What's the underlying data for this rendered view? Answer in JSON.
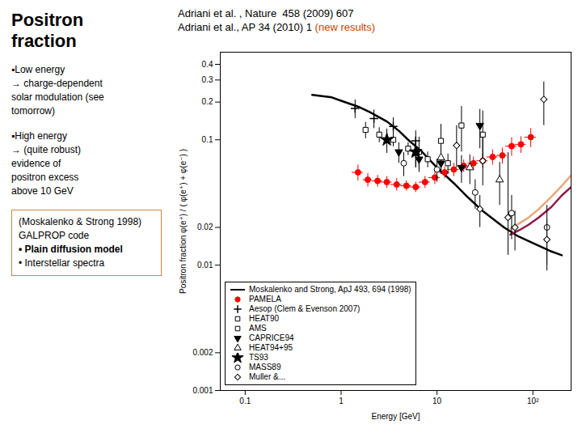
{
  "chart_data": {
    "type": "scatter",
    "title": "Positron\nfraction",
    "x_label": "Energy [GeV]",
    "y_label": "Positron fraction φ(e⁺) / ( φ(e⁺) + φ(e⁻) )",
    "log": true,
    "grid": false,
    "legend": "lower left",
    "xlim": [
      0.055,
      250
    ],
    "ylim": [
      0.001,
      0.5
    ],
    "xticks": [
      0.1,
      1,
      10,
      {
        "value": 100,
        "label": "10²"
      }
    ],
    "yticks": [
      0.001,
      0.002,
      0.01,
      0.02,
      0.1,
      0.2,
      0.3,
      0.4
    ],
    "annotations": [
      [
        [
          {
            "text": "▪Low energy\n→ charge-dependent\nsolar modulation (see\ntomorrow)"
          }
        ]
      ],
      [
        [
          {
            "text": "▪High energy\n→ (quite robust)\nevidence of\npositron excess\nabove 10 GeV"
          }
        ]
      ],
      [
        [
          {
            "text": "Adriani et al. , Nature  458 (2009) 607"
          }
        ],
        [
          {
            "text": "Adriani et al., AP 34 (2010) 1"
          },
          {
            "text": " (new results)",
            "color": "#cc4400"
          }
        ]
      ],
      [
        [
          {
            "text": "(Moskalenko & Strong 1998)\nGALPROP code"
          }
        ],
        [
          {
            "text": "• Plain diffusion model"
          }
        ],
        [
          {
            "text": "• Interstellar spectra"
          }
        ]
      ]
    ],
    "series": [
      {
        "name": "Moskalenko and Strong, ApJ 493, 694 (1998)",
        "type": "line",
        "line_style": "solid",
        "color": "#000000",
        "x": [
          0.5,
          0.8,
          1.0,
          1.5,
          2.0,
          3.0,
          4.0,
          5.0,
          7.0,
          10.0,
          15.0,
          20.0,
          30.0,
          50.0,
          70.0,
          100.0,
          150.0,
          200.0
        ],
        "values": [
          0.228,
          0.218,
          0.205,
          0.184,
          0.166,
          0.14,
          0.118,
          0.1,
          0.08,
          0.06,
          0.045,
          0.036,
          0.027,
          0.02,
          0.017,
          0.015,
          0.013,
          0.012
        ]
      },
      {
        "name": "PAMELA",
        "type": "scatter",
        "marker": "circle",
        "color": "red",
        "x": [
          1.5,
          1.9,
          2.4,
          3.0,
          3.8,
          4.8,
          6.0,
          7.5,
          9.5,
          12.0,
          15.0,
          19.0,
          24.0,
          30.0,
          38.0,
          48.0,
          60.0,
          75.0,
          95.0
        ],
        "values": [
          0.055,
          0.048,
          0.047,
          0.046,
          0.044,
          0.043,
          0.042,
          0.046,
          0.05,
          0.055,
          0.058,
          0.062,
          0.065,
          0.068,
          0.073,
          0.075,
          0.089,
          0.092,
          0.105
        ],
        "yerr": [
          0.008,
          0.006,
          0.005,
          0.005,
          0.005,
          0.004,
          0.004,
          0.005,
          0.006,
          0.006,
          0.007,
          0.007,
          0.008,
          0.009,
          0.01,
          0.011,
          0.015,
          0.014,
          0.018
        ],
        "xerr_lo": [
          0.2,
          0.2,
          0.3,
          0.4,
          0.5,
          0.6,
          0.8,
          1.0,
          1.3,
          1.5,
          2.0,
          2.5,
          3.0,
          4.0,
          5.0,
          6.0,
          8.0,
          10.0,
          13.0
        ],
        "xerr_hi": [
          0.2,
          0.2,
          0.3,
          0.4,
          0.5,
          0.6,
          0.8,
          1.0,
          1.3,
          1.5,
          2.0,
          2.5,
          3.0,
          4.0,
          5.0,
          6.0,
          8.0,
          10.0,
          13.0
        ]
      },
      {
        "name": "Aesop (Clem & Evenson 2007)",
        "type": "scatter",
        "marker": "plus",
        "color": "#000000",
        "x": [
          1.4,
          2.2,
          3.5,
          6.0
        ],
        "values": [
          0.178,
          0.148,
          0.128,
          0.098
        ],
        "yerr": [
          0.03,
          0.025,
          0.022,
          0.02
        ]
      },
      {
        "name": "HEAT90",
        "type": "scatter",
        "marker": "square-open",
        "color": "#000000",
        "x": [
          6.5,
          11.0,
          18.0,
          30.0
        ],
        "values": [
          0.08,
          0.098,
          0.13,
          0.11
        ],
        "yerr_lo": [
          0.025,
          0.03,
          0.05,
          0.04
        ],
        "yerr_hi": [
          0.025,
          0.035,
          0.055,
          0.06
        ]
      },
      {
        "name": "AMS",
        "type": "scatter",
        "marker": "square-open",
        "color": "#000000",
        "x": [
          1.8,
          2.5,
          3.5,
          5.0,
          8.0,
          13.0
        ],
        "values": [
          0.12,
          0.11,
          0.1,
          0.085,
          0.07,
          0.065
        ],
        "yerr": [
          0.018,
          0.015,
          0.012,
          0.01,
          0.01,
          0.012
        ]
      },
      {
        "name": "CAPRICE94",
        "type": "scatter",
        "marker": "triangle-down",
        "color": "#000000",
        "x": [
          4.0,
          6.5,
          11.0,
          18.0
        ],
        "values": [
          0.08,
          0.07,
          0.065,
          0.06
        ],
        "yerr": [
          0.015,
          0.012,
          0.012,
          0.015
        ]
      },
      {
        "name": "HEAT94+95",
        "type": "scatter",
        "marker": "triangle-up-open",
        "color": "#000000",
        "x": [
          6.0,
          11.0,
          22.0,
          45.0
        ],
        "values": [
          0.078,
          0.072,
          0.06,
          0.048
        ],
        "yerr": [
          0.018,
          0.016,
          0.016,
          0.018
        ]
      },
      {
        "name": "TS93",
        "type": "scatter",
        "marker": "star",
        "color": "#000000",
        "x": [
          3.0,
          6.0
        ],
        "values": [
          0.1,
          0.08
        ],
        "yerr": [
          0.022,
          0.02
        ]
      },
      {
        "name": "MASS89",
        "type": "scatter",
        "marker": "circle-open",
        "color": "#000000",
        "x": [
          4.5,
          10.0,
          25.0,
          60.0,
          140.0
        ],
        "values": [
          0.065,
          0.058,
          0.038,
          0.026,
          0.02
        ],
        "yerr": [
          0.014,
          0.012,
          0.01,
          0.01,
          0.01
        ]
      },
      {
        "name": "Muller &...",
        "type": "scatter",
        "marker": "diamond-open",
        "color": "#000000",
        "x": [
          28.0,
          65.0,
          140.0
        ],
        "values": [
          0.028,
          0.02,
          0.016
        ],
        "yerr": [
          0.008,
          0.007,
          0.007
        ]
      },
      {
        "type": "line",
        "line_style": "solid",
        "color": "#e8a878",
        "x": [
          58,
          72,
          90,
          115,
          155,
          200,
          250
        ],
        "values": [
          0.0195,
          0.0215,
          0.024,
          0.028,
          0.035,
          0.043,
          0.052
        ]
      },
      {
        "type": "line",
        "line_style": "solid",
        "color": "#901848",
        "x": [
          58,
          72,
          90,
          115,
          155,
          200,
          250
        ],
        "values": [
          0.0175,
          0.019,
          0.021,
          0.024,
          0.029,
          0.036,
          0.042
        ]
      },
      {
        "type": "scatter",
        "marker": "diamond-open",
        "color": "#000000",
        "x": [
          16.0,
          30.0,
          55.0,
          130.0
        ],
        "values": [
          0.09,
          0.068,
          0.024,
          0.21
        ],
        "yerr_lo": [
          0.03,
          0.025,
          0.012,
          0.08
        ],
        "yerr_hi": [
          0.04,
          0.035,
          0.055,
          0.08
        ]
      },
      {
        "type": "scatter",
        "marker": "triangle-down",
        "color": "#000000",
        "x": [
          28.0
        ],
        "values": [
          0.13
        ],
        "yerr_lo": [
          0.045
        ],
        "yerr_hi": [
          0.045
        ]
      }
    ]
  }
}
